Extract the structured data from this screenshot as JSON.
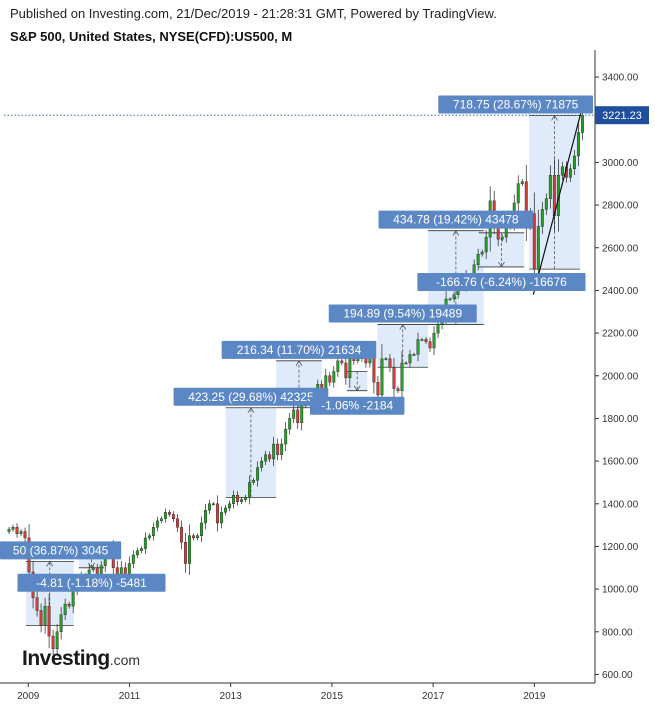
{
  "header": {
    "published": "Published on Investing.com, 21/Dec/2019 - 21:28:31 GMT, Powered by TradingView.",
    "symbol": "S&P 500, United States, NYSE(CFD):US500, M"
  },
  "logo": {
    "brand": "Investing",
    "suffix": ".com"
  },
  "colors": {
    "up": "#26a026",
    "down": "#d63b3b",
    "box": "#dbe9fb",
    "label": "#5b87c5",
    "price": "#1f4f9c"
  },
  "chart_data": {
    "type": "candlestick",
    "interval": "M",
    "ylim": [
      560,
      3480
    ],
    "x_range": [
      2008.6,
      2020.1
    ],
    "y_ticks": [
      600,
      800,
      1000,
      1200,
      1400,
      1600,
      1800,
      2000,
      2200,
      2400,
      2600,
      2800,
      3000,
      3200,
      3400
    ],
    "y_tick_labels": [
      "600.00",
      "800.00",
      "1000.00",
      "1200.00",
      "1400.00",
      "1600.00",
      "1800.00",
      "2000.00",
      "2200.00",
      "2400.00",
      "2600.00",
      "2800.00",
      "3000.00",
      "3200.00",
      "3400.00"
    ],
    "x_ticks": [
      2009,
      2011,
      2013,
      2015,
      2017,
      2019
    ],
    "x_tick_labels": [
      "2009",
      "2011",
      "2013",
      "2015",
      "2017",
      "2019"
    ],
    "last_price": 3221.23,
    "last_price_label": "3221.23",
    "closes": [
      1280,
      1290,
      1260,
      1270,
      1240,
      1080,
      960,
      900,
      830,
      920,
      780,
      720,
      800,
      880,
      930,
      920,
      990,
      1020,
      1060,
      1040,
      1090,
      1100,
      1070,
      1110,
      1170,
      1190,
      1100,
      1030,
      1100,
      1050,
      1120,
      1160,
      1180,
      1190,
      1240,
      1250,
      1290,
      1320,
      1330,
      1360,
      1350,
      1330,
      1290,
      1220,
      1120,
      1250,
      1240,
      1250,
      1310,
      1370,
      1400,
      1400,
      1310,
      1360,
      1380,
      1400,
      1440,
      1410,
      1420,
      1430,
      1500,
      1510,
      1570,
      1600,
      1630,
      1610,
      1680,
      1630,
      1680,
      1750,
      1800,
      1840,
      1780,
      1860,
      1870,
      1880,
      1920,
      1960,
      1930,
      2000,
      1970,
      2020,
      2070,
      2060,
      1990,
      2100,
      2070,
      2080,
      2100,
      2060,
      2100,
      1970,
      1910,
      2080,
      2080,
      2040,
      1940,
      1930,
      2060,
      2060,
      2100,
      2100,
      2170,
      2170,
      2160,
      2130,
      2200,
      2240,
      2280,
      2360,
      2360,
      2380,
      2410,
      2420,
      2470,
      2470,
      2520,
      2570,
      2580,
      2650,
      2820,
      2710,
      2640,
      2650,
      2700,
      2720,
      2810,
      2900,
      2910,
      2710,
      2760,
      2500,
      2700,
      2780,
      2830,
      2940,
      2750,
      2940,
      2980,
      2930,
      2970,
      3030,
      3140,
      3221
    ],
    "measurements": [
      {
        "label": "50 (36.87%) 3045",
        "x_start": 2008.95,
        "x_end": 2009.9,
        "y_start": 830,
        "y_end": 1130
      },
      {
        "label": "-4.81 (-1.18%) -5481",
        "x_start": 2010.0,
        "x_end": 2010.5,
        "y_start": 1210,
        "y_end": 1100
      },
      {
        "label": "423.25 (29.68%) 42325",
        "x_start": 2012.9,
        "x_end": 2013.9,
        "y_start": 1430,
        "y_end": 1850
      },
      {
        "label": "216.34 (11.70%) 21634",
        "x_start": 2013.9,
        "x_end": 2014.8,
        "y_start": 1850,
        "y_end": 2070
      },
      {
        "label": "-1.06% -2184",
        "x_start": 2015.3,
        "x_end": 2015.7,
        "y_start": 2020,
        "y_end": 1930
      },
      {
        "label": "194.89 (9.54%) 19489",
        "x_start": 2015.9,
        "x_end": 2016.9,
        "y_start": 2040,
        "y_end": 2240
      },
      {
        "label": "434.78 (19.42%) 43478",
        "x_start": 2016.9,
        "x_end": 2018.0,
        "y_start": 2240,
        "y_end": 2680
      },
      {
        "label": "-166.76 (-6.24%) -16676",
        "x_start": 2017.9,
        "x_end": 2018.8,
        "y_start": 2670,
        "y_end": 2510
      },
      {
        "label": "718.75 (28.67%) 71875",
        "x_start": 2018.9,
        "x_end": 2019.9,
        "y_start": 2500,
        "y_end": 3220
      }
    ],
    "trendline": [
      [
        2018.98,
        2380
      ],
      [
        2019.95,
        3260
      ]
    ]
  }
}
